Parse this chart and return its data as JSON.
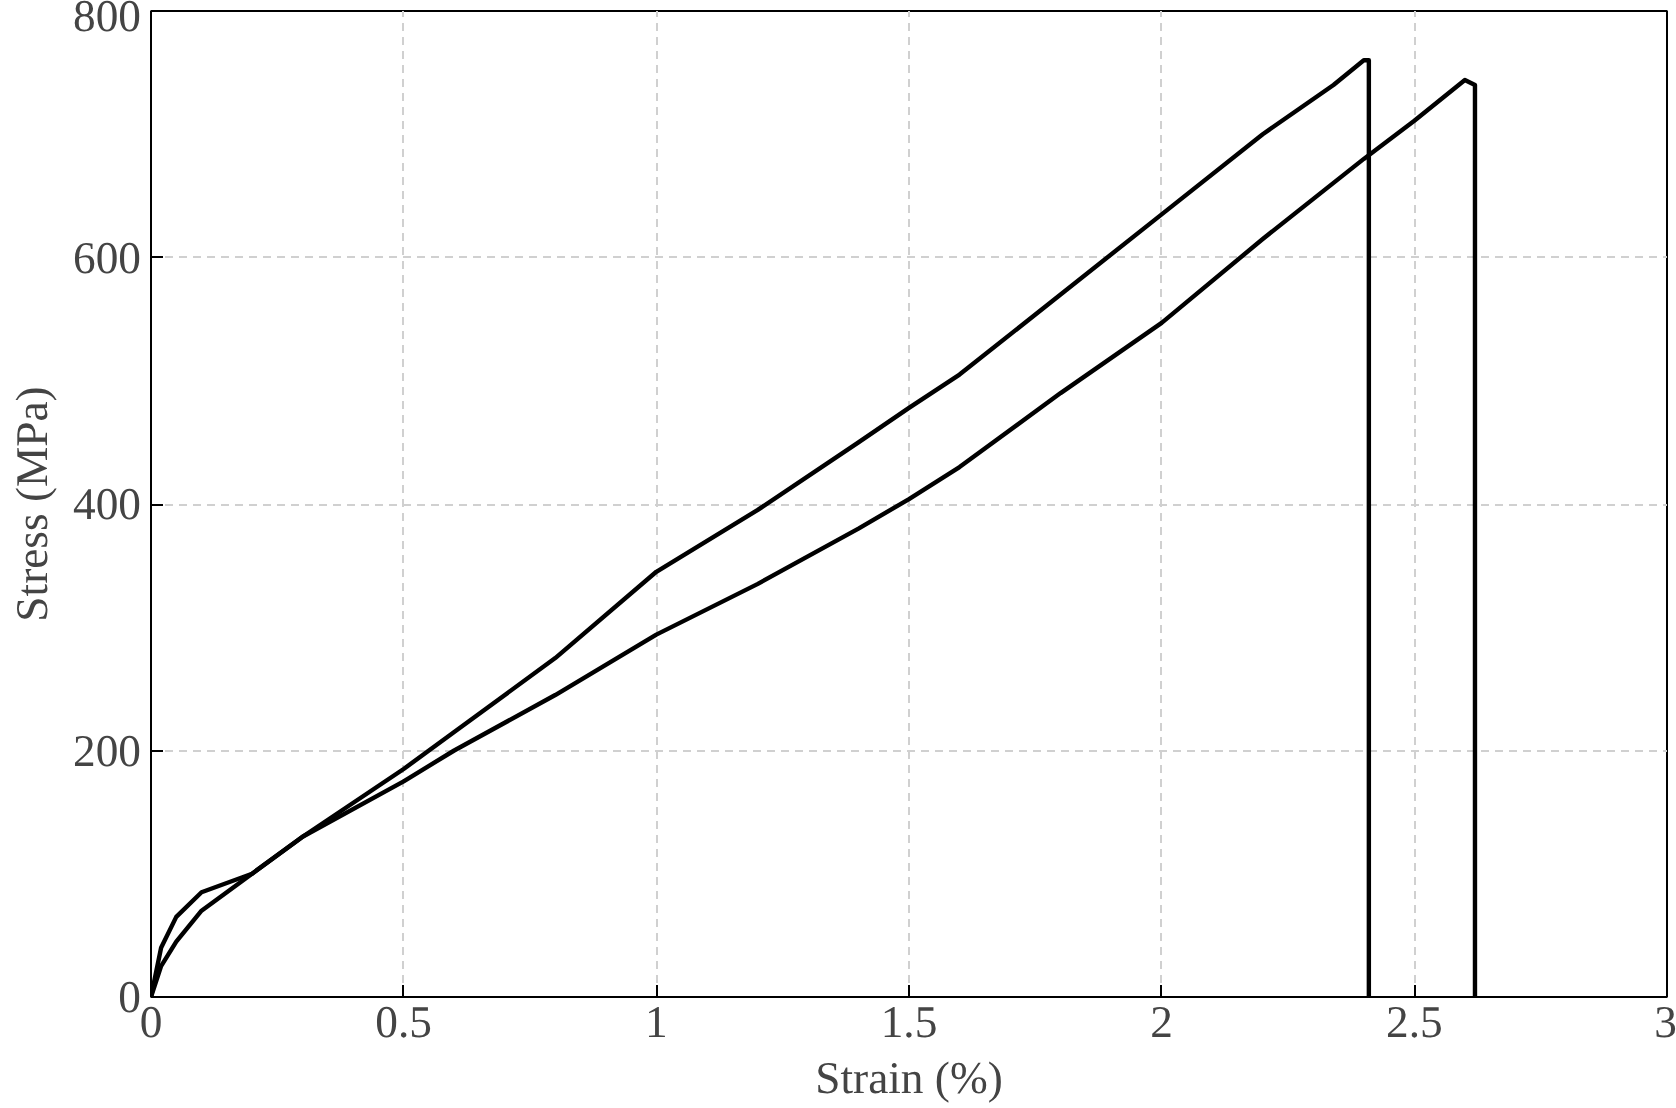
{
  "chart_data": {
    "type": "line",
    "xlabel": "Strain (%)",
    "ylabel": "Stress (MPa)",
    "xlim": [
      0,
      3
    ],
    "ylim": [
      0,
      800
    ],
    "xticks": [
      0,
      0.5,
      1,
      1.5,
      2,
      2.5,
      3
    ],
    "yticks": [
      0,
      200,
      400,
      600,
      800
    ],
    "grid": true,
    "marker": "none",
    "line_style": "solid",
    "series": [
      {
        "color": "#000000",
        "x": [
          0,
          0.02,
          0.05,
          0.1,
          0.2,
          0.3,
          0.5,
          0.6,
          0.8,
          1.0,
          1.2,
          1.4,
          1.5,
          1.6,
          1.8,
          2.0,
          2.2,
          2.34,
          2.4,
          2.41,
          2.41
        ],
        "values": [
          0,
          40,
          65,
          85,
          100,
          130,
          185,
          215,
          275,
          345,
          395,
          450,
          478,
          505,
          570,
          635,
          700,
          740,
          760,
          760,
          0
        ]
      },
      {
        "color": "#000000",
        "x": [
          0,
          0.02,
          0.05,
          0.1,
          0.2,
          0.3,
          0.5,
          0.6,
          0.8,
          1.0,
          1.2,
          1.4,
          1.5,
          1.6,
          1.8,
          2.0,
          2.2,
          2.4,
          2.5,
          2.6,
          2.62,
          2.62
        ],
        "values": [
          0,
          25,
          45,
          70,
          100,
          130,
          175,
          200,
          245,
          294,
          335,
          380,
          404,
          430,
          490,
          547,
          615,
          680,
          711,
          744,
          740,
          0
        ]
      }
    ]
  }
}
